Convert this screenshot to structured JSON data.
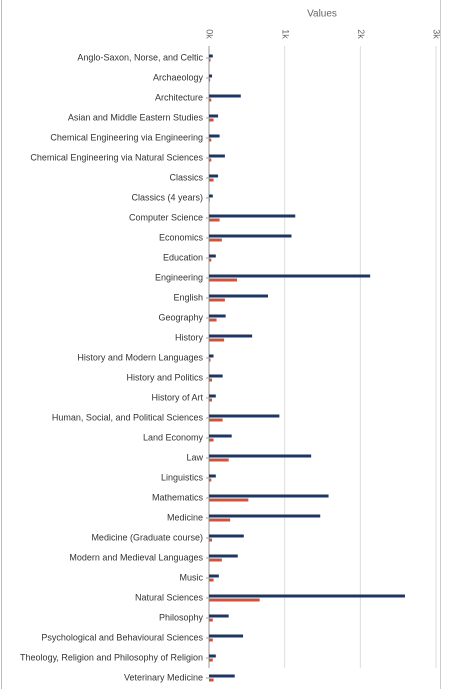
{
  "chart_data": {
    "type": "hbar",
    "x_label": "Values",
    "categories": [
      "Anglo-Saxon, Norse, and Celtic",
      "Archaeology",
      "Architecture",
      "Asian and Middle Eastern Studies",
      "Chemical Engineering via Engineering",
      "Chemical Engineering via Natural Sciences",
      "Classics",
      "Classics (4 years)",
      "Computer Science",
      "Economics",
      "Education",
      "Engineering",
      "English",
      "Geography",
      "History",
      "History and Modern Languages",
      "History and Politics",
      "History of Art",
      "Human, Social, and Political Sciences",
      "Land Economy",
      "Law",
      "Linguistics",
      "Mathematics",
      "Medicine",
      "Medicine (Graduate course)",
      "Modern and Medieval Languages",
      "Music",
      "Natural Sciences",
      "Philosophy",
      "Psychological and Behavioural Sciences",
      "Theology, Religion and Philosophy of Religion",
      "Veterinary Medicine"
    ],
    "series": [
      {
        "color": "#1f3760",
        "values": [
          50,
          40,
          420,
          120,
          140,
          210,
          120,
          50,
          1140,
          1090,
          90,
          2130,
          780,
          220,
          570,
          60,
          180,
          90,
          930,
          300,
          1350,
          90,
          1580,
          1470,
          460,
          380,
          130,
          2590,
          260,
          450,
          90,
          340
        ]
      },
      {
        "color": "#c8553d",
        "values": [
          20,
          15,
          30,
          60,
          30,
          30,
          60,
          10,
          140,
          170,
          30,
          370,
          210,
          100,
          200,
          20,
          40,
          40,
          180,
          60,
          260,
          30,
          520,
          280,
          40,
          170,
          60,
          670,
          50,
          50,
          50,
          60
        ]
      }
    ],
    "xlim": [
      0,
      3000
    ],
    "xticks": [
      {
        "value": 0,
        "label": "0k"
      },
      {
        "value": 1000,
        "label": "1k"
      },
      {
        "value": 2000,
        "label": "2k"
      },
      {
        "value": 3000,
        "label": "3k"
      }
    ],
    "grid": true
  }
}
